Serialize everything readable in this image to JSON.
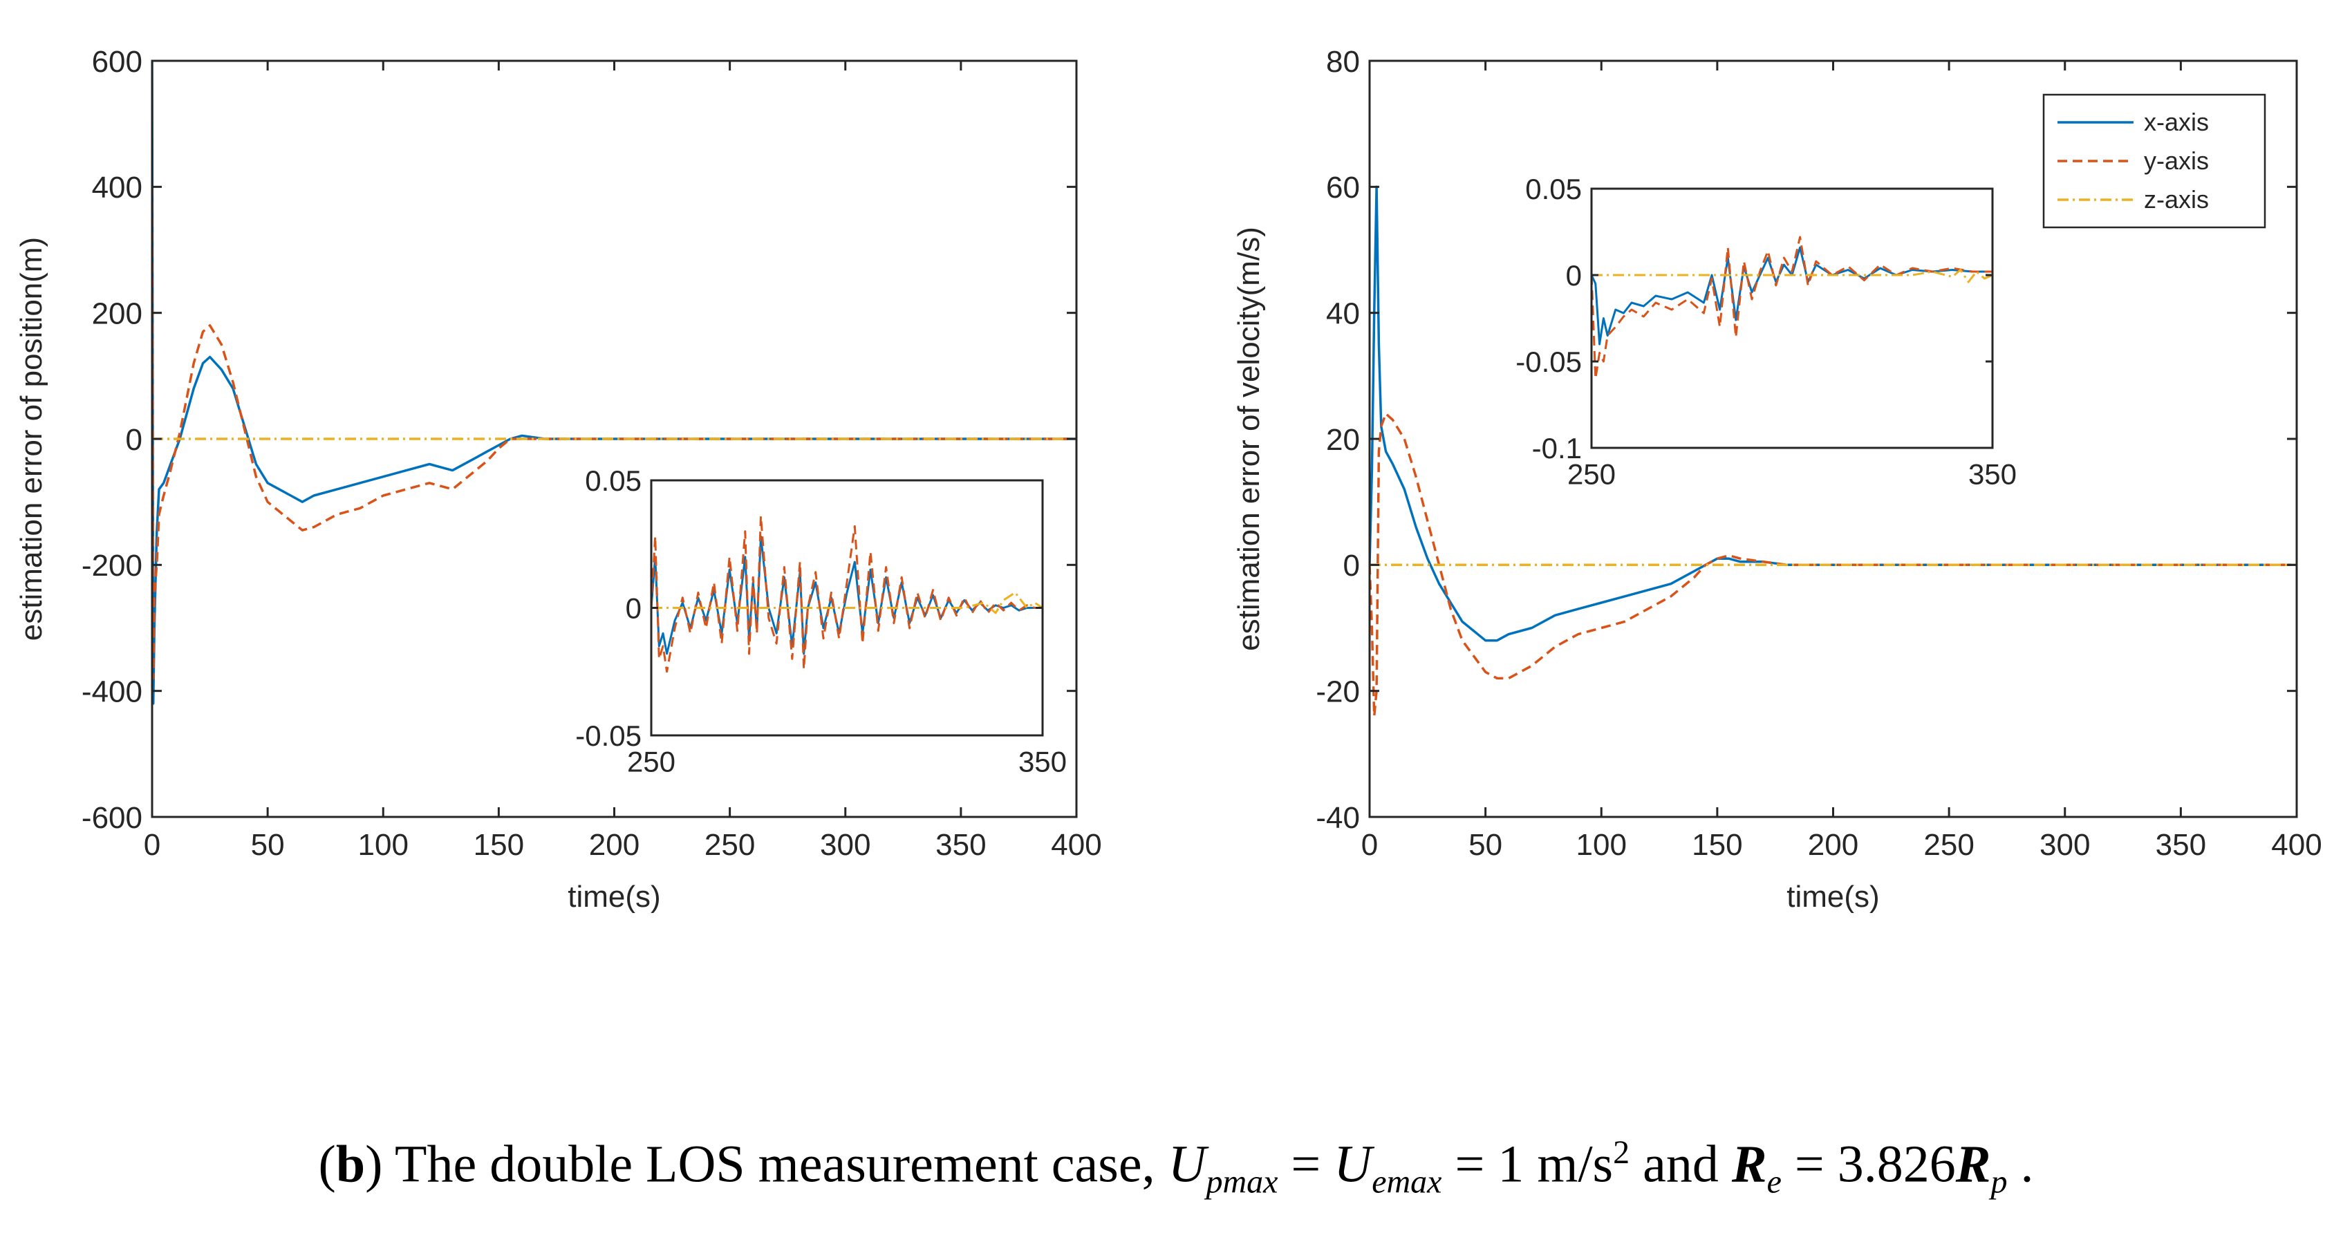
{
  "colors": {
    "x": "#0072BD",
    "y": "#D95319",
    "z": "#EDB120",
    "axis": "#262626"
  },
  "caption": {
    "paren_open": "(",
    "letter": "b",
    "paren_close": ")",
    "text": " The double LOS measurement case,  ",
    "u": "U",
    "pmax": "pmax",
    "eq1": " = ",
    "emax": "emax",
    "eq2": " = 1 m/s",
    "sq": "2",
    "and": "   and   ",
    "r": "R",
    "e": "e",
    "eq3": " = 3.826",
    "p": "p",
    "end": " ."
  },
  "chart_data": [
    {
      "id": "position",
      "type": "line",
      "xlabel": "time(s)",
      "ylabel": "estimation error of position(m)",
      "xlim": [
        0,
        400
      ],
      "ylim": [
        -600,
        600
      ],
      "xticks": [
        0,
        50,
        100,
        150,
        200,
        250,
        300,
        350,
        400
      ],
      "yticks": [
        -600,
        -400,
        -200,
        0,
        200,
        400,
        600
      ],
      "series": [
        {
          "name": "x-axis",
          "style": "solid",
          "x": [
            0,
            0.5,
            1,
            2,
            3,
            5,
            8,
            12,
            18,
            22,
            25,
            30,
            35,
            40,
            45,
            50,
            60,
            65,
            70,
            80,
            90,
            100,
            110,
            120,
            130,
            140,
            145,
            150,
            155,
            160,
            170,
            180,
            200,
            250,
            300,
            350,
            400
          ],
          "y": [
            600,
            -420,
            -300,
            -150,
            -80,
            -70,
            -40,
            0,
            80,
            120,
            130,
            110,
            80,
            20,
            -40,
            -70,
            -90,
            -100,
            -90,
            -80,
            -70,
            -60,
            -50,
            -40,
            -50,
            -30,
            -20,
            -10,
            0,
            5,
            0,
            0,
            0,
            0,
            0,
            0,
            0
          ]
        },
        {
          "name": "y-axis",
          "style": "dashed",
          "x": [
            0,
            0.5,
            1,
            2,
            3,
            5,
            8,
            12,
            18,
            22,
            25,
            30,
            35,
            40,
            45,
            50,
            60,
            65,
            70,
            80,
            90,
            100,
            110,
            120,
            130,
            140,
            145,
            150,
            155,
            160,
            170,
            180,
            200,
            250,
            300,
            350,
            400
          ],
          "y": [
            400,
            -380,
            -250,
            -200,
            -120,
            -90,
            -50,
            10,
            120,
            170,
            180,
            150,
            90,
            15,
            -60,
            -100,
            -130,
            -145,
            -140,
            -120,
            -110,
            -90,
            -80,
            -70,
            -80,
            -50,
            -35,
            -15,
            0,
            0,
            0,
            0,
            0,
            0,
            0,
            0,
            0
          ]
        },
        {
          "name": "z-axis",
          "style": "dashdot",
          "x": [
            0,
            400
          ],
          "y": [
            0,
            0
          ]
        }
      ],
      "inset": {
        "xlim": [
          250,
          350
        ],
        "ylim": [
          -0.05,
          0.05
        ],
        "xticks": [
          250,
          350
        ],
        "yticks": [
          -0.05,
          0,
          0.05
        ],
        "series": [
          {
            "name": "x-axis",
            "style": "solid",
            "x": [
              250,
              251,
              252,
              253,
              254,
              256,
              258,
              260,
              262,
              264,
              266,
              268,
              270,
              272,
              274,
              275,
              276,
              277,
              278,
              280,
              282,
              284,
              286,
              288,
              289,
              290,
              292,
              294,
              296,
              298,
              300,
              302,
              304,
              306,
              308,
              310,
              312,
              314,
              316,
              318,
              320,
              322,
              324,
              326,
              328,
              330,
              332,
              334,
              336,
              338,
              340,
              342,
              344,
              346,
              348,
              350
            ],
            "y": [
              0,
              0.02,
              -0.015,
              -0.01,
              -0.018,
              -0.005,
              0.002,
              -0.008,
              0.004,
              -0.005,
              0.007,
              -0.01,
              0.015,
              -0.006,
              0.02,
              -0.012,
              0.01,
              -0.008,
              0.028,
              0.0,
              -0.01,
              0.012,
              -0.015,
              0.014,
              -0.018,
              0.0,
              0.01,
              -0.008,
              0.004,
              -0.01,
              0.006,
              0.018,
              -0.01,
              0.015,
              -0.006,
              0.012,
              -0.004,
              0.01,
              -0.006,
              0.004,
              -0.003,
              0.005,
              -0.004,
              0.003,
              -0.002,
              0.003,
              -0.001,
              0.002,
              -0.001,
              0.001,
              0.0,
              0.001,
              -0.001,
              0.0,
              0.0,
              0.0
            ]
          },
          {
            "name": "y-axis",
            "style": "dashed",
            "x": [
              250,
              251,
              252,
              253,
              254,
              256,
              258,
              260,
              262,
              264,
              266,
              268,
              270,
              272,
              274,
              275,
              276,
              277,
              278,
              280,
              282,
              284,
              286,
              288,
              289,
              290,
              292,
              294,
              296,
              298,
              300,
              302,
              304,
              306,
              308,
              310,
              312,
              314,
              316,
              318,
              320,
              322,
              324,
              326,
              328,
              330,
              332,
              334,
              336,
              338,
              340,
              342,
              344,
              346,
              348,
              350
            ],
            "y": [
              0,
              0.028,
              -0.02,
              -0.015,
              -0.025,
              -0.008,
              0.004,
              -0.01,
              0.006,
              -0.008,
              0.01,
              -0.014,
              0.02,
              -0.009,
              0.03,
              -0.018,
              0.012,
              -0.01,
              0.036,
              -0.004,
              -0.014,
              0.016,
              -0.02,
              0.018,
              -0.024,
              0.0,
              0.014,
              -0.012,
              0.006,
              -0.012,
              0.01,
              0.032,
              -0.014,
              0.022,
              -0.009,
              0.016,
              -0.006,
              0.012,
              -0.008,
              0.006,
              -0.004,
              0.007,
              -0.005,
              0.004,
              -0.003,
              0.004,
              -0.002,
              0.003,
              -0.002,
              0.002,
              -0.001,
              0.002,
              -0.001,
              0.001,
              0.0,
              0.0
            ]
          },
          {
            "name": "z-axis",
            "style": "dashdot",
            "x": [
              250,
              330,
              335,
              338,
              340,
              343,
              346,
              348,
              350
            ],
            "y": [
              0,
              0,
              0.002,
              -0.002,
              0.003,
              0.006,
              0.0,
              0.002,
              0.0
            ]
          }
        ]
      }
    },
    {
      "id": "velocity",
      "type": "line",
      "xlabel": "time(s)",
      "ylabel": "estimation error of velocity(m/s)",
      "xlim": [
        0,
        400
      ],
      "ylim": [
        -40,
        80
      ],
      "xticks": [
        0,
        50,
        100,
        150,
        200,
        250,
        300,
        350,
        400
      ],
      "yticks": [
        -40,
        -20,
        0,
        20,
        40,
        60,
        80
      ],
      "legend": {
        "position": "top-right",
        "entries": [
          "x-axis",
          "y-axis",
          "z-axis"
        ]
      },
      "series": [
        {
          "name": "x-axis",
          "style": "solid",
          "x": [
            0,
            1,
            2,
            3,
            4,
            5,
            7,
            10,
            15,
            20,
            25,
            30,
            35,
            40,
            50,
            55,
            60,
            70,
            80,
            90,
            100,
            110,
            120,
            130,
            140,
            145,
            150,
            155,
            160,
            170,
            180,
            190,
            200,
            250,
            300,
            350,
            400
          ],
          "y": [
            0,
            15,
            40,
            60,
            35,
            22,
            18,
            16,
            12,
            6,
            1,
            -3,
            -6,
            -9,
            -12,
            -12,
            -11,
            -10,
            -8,
            -7,
            -6,
            -5,
            -4,
            -3,
            -1,
            0,
            1,
            1,
            0.5,
            0.5,
            0,
            0,
            0,
            0,
            0,
            0,
            0
          ]
        },
        {
          "name": "y-axis",
          "style": "dashed",
          "x": [
            0,
            1,
            2,
            3,
            4,
            5,
            7,
            10,
            15,
            20,
            25,
            30,
            35,
            40,
            50,
            55,
            60,
            70,
            80,
            90,
            100,
            110,
            120,
            130,
            140,
            145,
            150,
            155,
            160,
            170,
            180,
            190,
            200,
            250,
            300,
            350,
            400
          ],
          "y": [
            0,
            -10,
            -24,
            -20,
            18,
            22,
            24,
            23,
            20,
            14,
            7,
            0,
            -7,
            -12,
            -17,
            -18,
            -18,
            -16,
            -13,
            -11,
            -10,
            -9,
            -7,
            -5,
            -2,
            0,
            1,
            1.5,
            1,
            0.5,
            0,
            0,
            0,
            0,
            0,
            0,
            0
          ]
        },
        {
          "name": "z-axis",
          "style": "dashdot",
          "x": [
            0,
            400
          ],
          "y": [
            0,
            0
          ]
        }
      ],
      "inset": {
        "xlim": [
          250,
          350
        ],
        "ylim": [
          -0.1,
          0.05
        ],
        "xticks": [
          250,
          350
        ],
        "yticks": [
          -0.1,
          -0.05,
          0,
          0.05
        ],
        "series": [
          {
            "name": "x-axis",
            "style": "solid",
            "x": [
              250,
              251,
              252,
              253,
              254,
              256,
              258,
              260,
              263,
              266,
              270,
              274,
              278,
              280,
              282,
              284,
              286,
              288,
              290,
              292,
              294,
              296,
              298,
              300,
              302,
              304,
              306,
              310,
              314,
              318,
              322,
              326,
              330,
              335,
              340,
              345,
              350
            ],
            "y": [
              0,
              -0.005,
              -0.04,
              -0.025,
              -0.035,
              -0.02,
              -0.022,
              -0.016,
              -0.018,
              -0.012,
              -0.014,
              -0.01,
              -0.016,
              0.0,
              -0.02,
              0.01,
              -0.026,
              0.005,
              -0.01,
              0.0,
              0.01,
              -0.004,
              0.006,
              0.0,
              0.016,
              -0.004,
              0.006,
              0.0,
              0.003,
              -0.002,
              0.004,
              0.0,
              0.003,
              0.002,
              0.003,
              0.002,
              0.002
            ]
          },
          {
            "name": "y-axis",
            "style": "dashed",
            "x": [
              250,
              251,
              252,
              253,
              254,
              256,
              258,
              260,
              263,
              266,
              270,
              274,
              278,
              280,
              282,
              284,
              286,
              288,
              290,
              292,
              294,
              296,
              298,
              300,
              302,
              304,
              306,
              310,
              314,
              318,
              322,
              326,
              330,
              335,
              340,
              345,
              350
            ],
            "y": [
              0,
              -0.06,
              -0.045,
              -0.05,
              -0.035,
              -0.03,
              -0.024,
              -0.02,
              -0.024,
              -0.016,
              -0.02,
              -0.014,
              -0.022,
              -0.002,
              -0.03,
              0.016,
              -0.036,
              0.008,
              -0.014,
              0.002,
              0.014,
              -0.006,
              0.01,
              0.002,
              0.022,
              -0.006,
              0.008,
              0.0,
              0.005,
              -0.003,
              0.006,
              0.0,
              0.004,
              0.002,
              0.004,
              0.002,
              0.002
            ]
          },
          {
            "name": "z-axis",
            "style": "dashdot",
            "x": [
              250,
              330,
              335,
              340,
              342,
              344,
              346,
              348,
              350
            ],
            "y": [
              0,
              0,
              0.002,
              -0.001,
              0.003,
              -0.004,
              0.002,
              -0.002,
              0.0
            ]
          }
        ]
      }
    }
  ]
}
